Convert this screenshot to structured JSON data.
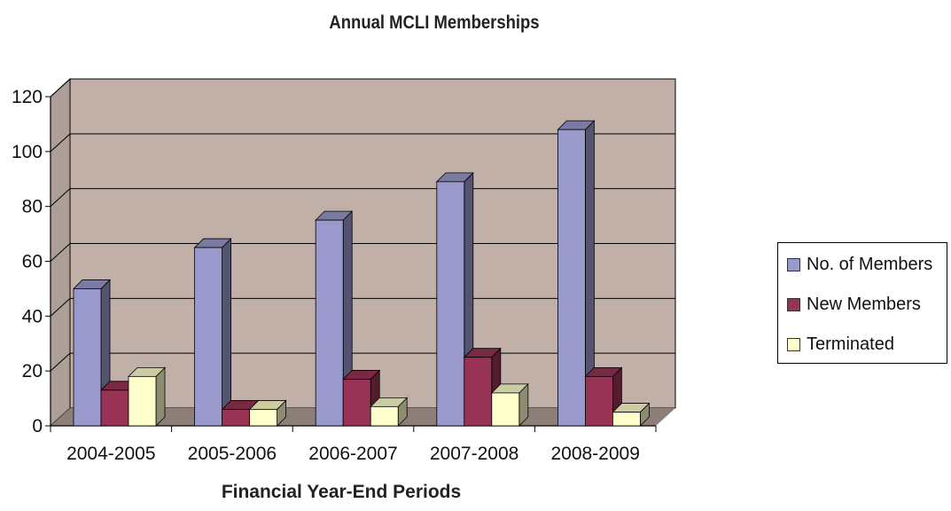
{
  "chart_data": {
    "type": "bar",
    "title": "Annual MCLI Memberships",
    "xlabel": "Financial Year-End Periods",
    "ylabel": "",
    "categories": [
      "2004-2005",
      "2005-2006",
      "2006-2007",
      "2007-2008",
      "2008-2009"
    ],
    "series": [
      {
        "name": "No. of Members",
        "values": [
          50,
          65,
          75,
          89,
          108
        ],
        "color": "#9999cc"
      },
      {
        "name": "New Members",
        "values": [
          13,
          6,
          17,
          25,
          18
        ],
        "color": "#993355"
      },
      {
        "name": "Terminated",
        "values": [
          18,
          6,
          7,
          12,
          5
        ],
        "color": "#ffffcc"
      }
    ],
    "ylim": [
      0,
      120
    ],
    "yticks": [
      0,
      20,
      40,
      60,
      80,
      100,
      120
    ],
    "grid": true,
    "legend_position": "right",
    "style": "3d-clustered-column",
    "colors": {
      "wall": "#c0b0a8",
      "floor": "#8c7e78",
      "gridline": "#000000"
    }
  }
}
